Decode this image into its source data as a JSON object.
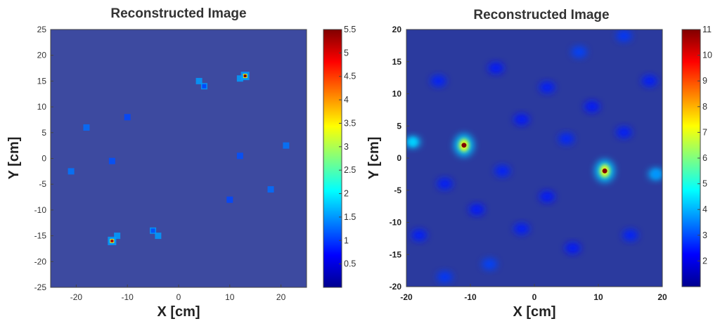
{
  "chart_data": [
    {
      "type": "heatmap",
      "title": "Reconstructed Image",
      "xlabel": "X [cm]",
      "ylabel": "Y [cm]",
      "xlim": [
        -25,
        25
      ],
      "ylim": [
        -25,
        25
      ],
      "xticks": [
        -20,
        -10,
        0,
        10,
        20
      ],
      "yticks": [
        25,
        20,
        15,
        10,
        5,
        0,
        -5,
        -10,
        -15,
        -20,
        -25
      ],
      "colorbar": {
        "min": 0,
        "max": 5.5,
        "ticks": [
          "5.5",
          "5",
          "4.5",
          "4",
          "3.5",
          "3",
          "2.5",
          "2",
          "1.5",
          "1",
          "0.5"
        ]
      },
      "colormap": "jet",
      "background_value": 0.15,
      "features": [
        {
          "x": 13,
          "y": 16,
          "value": 5.5
        },
        {
          "x": -13,
          "y": -16,
          "value": 5.2
        },
        {
          "x": 5,
          "y": 14,
          "value": 1.8
        },
        {
          "x": -5,
          "y": -14,
          "value": 1.9
        },
        {
          "x": 4,
          "y": 15,
          "value": 0.7
        },
        {
          "x": 12,
          "y": 15.5,
          "value": 0.8
        },
        {
          "x": -12,
          "y": -15,
          "value": 0.8
        },
        {
          "x": -4,
          "y": -15,
          "value": 0.7
        },
        {
          "x": 21,
          "y": 2.5,
          "value": 0.5
        },
        {
          "x": -21,
          "y": -2.5,
          "value": 0.5
        },
        {
          "x": -18,
          "y": 6,
          "value": 0.45
        },
        {
          "x": 18,
          "y": -6,
          "value": 0.45
        },
        {
          "x": -13,
          "y": -0.5,
          "value": 0.3
        },
        {
          "x": 12,
          "y": 0.5,
          "value": 0.3
        },
        {
          "x": -10,
          "y": 8,
          "value": 0.25
        },
        {
          "x": 10,
          "y": -8,
          "value": 0.25
        }
      ]
    },
    {
      "type": "heatmap",
      "title": "Reconstructed Image",
      "xlabel": "X [cm]",
      "ylabel": "Y [cm]",
      "xlim": [
        -20,
        20
      ],
      "ylim": [
        -20,
        20
      ],
      "xticks": [
        -20,
        -10,
        0,
        10,
        20
      ],
      "yticks": [
        20,
        15,
        10,
        5,
        0,
        -5,
        -10,
        -15,
        -20
      ],
      "colorbar": {
        "min": 1,
        "max": 11,
        "ticks": [
          "11",
          "10",
          "9",
          "8",
          "7",
          "6",
          "5",
          "4",
          "3",
          "2"
        ]
      },
      "colormap": "jet",
      "background_value": 1.6,
      "features": [
        {
          "x": -11,
          "y": 2,
          "value": 11
        },
        {
          "x": 11,
          "y": -2,
          "value": 11
        },
        {
          "x": -19,
          "y": 2.5,
          "value": 6.5
        },
        {
          "x": 19,
          "y": -2.5,
          "value": 5.5
        },
        {
          "x": 7,
          "y": 16.5,
          "value": 3
        },
        {
          "x": 14,
          "y": 19,
          "value": 2.8
        },
        {
          "x": -7,
          "y": -16.5,
          "value": 3
        },
        {
          "x": -14,
          "y": -18.5,
          "value": 2.8
        },
        {
          "x": 5,
          "y": 3,
          "value": 2.4
        },
        {
          "x": -5,
          "y": -2,
          "value": 2.3
        },
        {
          "x": 2,
          "y": 11,
          "value": 2.2
        },
        {
          "x": -2,
          "y": -11,
          "value": 2.2
        },
        {
          "x": -15,
          "y": 12,
          "value": 2.3
        },
        {
          "x": 15,
          "y": -12,
          "value": 2.3
        },
        {
          "x": -6,
          "y": 14,
          "value": 2.1
        },
        {
          "x": 6,
          "y": -14,
          "value": 2.1
        },
        {
          "x": 14,
          "y": 4,
          "value": 2.2
        },
        {
          "x": -14,
          "y": -4,
          "value": 2.2
        },
        {
          "x": -2,
          "y": 6,
          "value": 2.0
        },
        {
          "x": 2,
          "y": -6,
          "value": 2.0
        },
        {
          "x": 9,
          "y": 8,
          "value": 2.1
        },
        {
          "x": -9,
          "y": -8,
          "value": 2.1
        },
        {
          "x": -18,
          "y": -12,
          "value": 2.2
        },
        {
          "x": 18,
          "y": 12,
          "value": 2.2
        }
      ]
    }
  ]
}
